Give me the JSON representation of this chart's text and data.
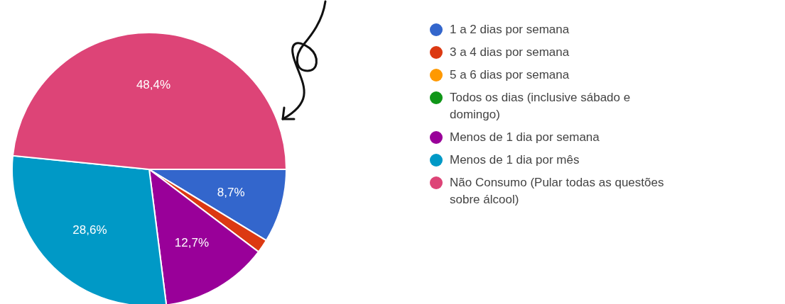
{
  "chart_data": {
    "type": "pie",
    "categories": [
      "1 a 2 dias por semana",
      "3 a 4 dias por semana",
      "5 a 6 dias por semana",
      "Todos os dias (inclusive sábado e domingo)",
      "Menos de 1 dia por semana",
      "Menos de 1 dia por mês",
      "Não Consumo (Pular todas as questões sobre álcool)"
    ],
    "values": [
      8.7,
      1.6,
      0,
      0,
      12.7,
      28.6,
      48.4
    ],
    "value_labels": [
      "8,7%",
      null,
      null,
      null,
      "12,7%",
      "28,6%",
      "48,4%"
    ],
    "colors": [
      "#3366cc",
      "#dc3912",
      "#ff9900",
      "#109618",
      "#990099",
      "#0099c6",
      "#dd4477"
    ],
    "legend": "right"
  }
}
